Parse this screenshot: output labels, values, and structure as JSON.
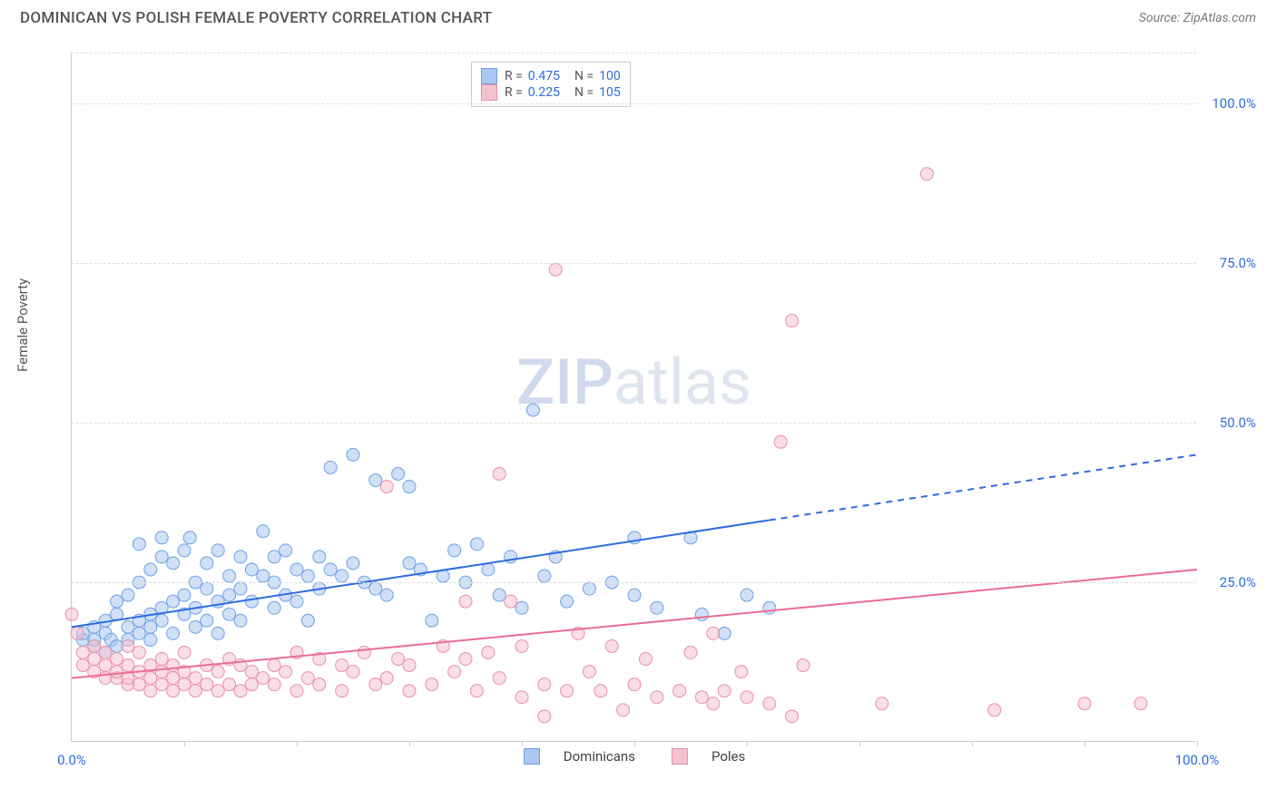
{
  "title": "DOMINICAN VS POLISH FEMALE POVERTY CORRELATION CHART",
  "source_label": "Source: ",
  "source_name": "ZipAtlas.com",
  "ylabel": "Female Poverty",
  "watermark_a": "ZIP",
  "watermark_b": "atlas",
  "chart": {
    "type": "scatter",
    "xlim": [
      0,
      100
    ],
    "ylim": [
      0,
      108
    ],
    "xtick_step": 10,
    "xtick_major": [
      0,
      100
    ],
    "ytick_values": [
      25,
      50,
      75,
      100
    ],
    "ytick_labels": [
      "25.0%",
      "50.0%",
      "75.0%",
      "100.0%"
    ],
    "xaxis_label_left": "0.0%",
    "xaxis_label_right": "100.0%",
    "grid_color": "#dddddd",
    "axis_color": "#cccccc",
    "background": "#ffffff",
    "marker_radius": 7,
    "marker_opacity": 0.55,
    "series": [
      {
        "name": "Dominicans",
        "color_fill": "#a9c7f0",
        "color_stroke": "#6fa0e6",
        "r": 0.475,
        "n": 100,
        "trend": {
          "color": "#2d6cdf",
          "width": 2.0,
          "y0": 18,
          "y1": 45,
          "solid_until_x": 62
        },
        "points": [
          [
            1,
            16
          ],
          [
            1,
            17
          ],
          [
            2,
            15
          ],
          [
            2,
            18
          ],
          [
            2,
            16
          ],
          [
            3,
            17
          ],
          [
            3,
            14
          ],
          [
            3,
            19
          ],
          [
            3.5,
            16
          ],
          [
            4,
            20
          ],
          [
            4,
            22
          ],
          [
            4,
            15
          ],
          [
            5,
            18
          ],
          [
            5,
            23
          ],
          [
            5,
            16
          ],
          [
            6,
            19
          ],
          [
            6,
            25
          ],
          [
            6,
            17
          ],
          [
            6,
            31
          ],
          [
            7,
            20
          ],
          [
            7,
            27
          ],
          [
            7,
            18
          ],
          [
            7,
            16
          ],
          [
            8,
            21
          ],
          [
            8,
            29
          ],
          [
            8,
            32
          ],
          [
            8,
            19
          ],
          [
            9,
            22
          ],
          [
            9,
            17
          ],
          [
            9,
            28
          ],
          [
            10,
            23
          ],
          [
            10,
            20
          ],
          [
            10,
            30
          ],
          [
            10.5,
            32
          ],
          [
            11,
            25
          ],
          [
            11,
            18
          ],
          [
            11,
            21
          ],
          [
            12,
            24
          ],
          [
            12,
            28
          ],
          [
            12,
            19
          ],
          [
            13,
            22
          ],
          [
            13,
            30
          ],
          [
            13,
            17
          ],
          [
            14,
            20
          ],
          [
            14,
            23
          ],
          [
            14,
            26
          ],
          [
            15,
            24
          ],
          [
            15,
            29
          ],
          [
            15,
            19
          ],
          [
            16,
            27
          ],
          [
            16,
            22
          ],
          [
            17,
            26
          ],
          [
            17,
            33
          ],
          [
            18,
            25
          ],
          [
            18,
            29
          ],
          [
            18,
            21
          ],
          [
            19,
            23
          ],
          [
            19,
            30
          ],
          [
            20,
            22
          ],
          [
            20,
            27
          ],
          [
            21,
            26
          ],
          [
            21,
            19
          ],
          [
            22,
            29
          ],
          [
            22,
            24
          ],
          [
            23,
            27
          ],
          [
            23,
            43
          ],
          [
            24,
            26
          ],
          [
            25,
            28
          ],
          [
            25,
            45
          ],
          [
            26,
            25
          ],
          [
            27,
            24
          ],
          [
            27,
            41
          ],
          [
            28,
            23
          ],
          [
            29,
            42
          ],
          [
            30,
            28
          ],
          [
            30,
            40
          ],
          [
            31,
            27
          ],
          [
            32,
            19
          ],
          [
            33,
            26
          ],
          [
            34,
            30
          ],
          [
            35,
            25
          ],
          [
            36,
            31
          ],
          [
            37,
            27
          ],
          [
            38,
            23
          ],
          [
            39,
            29
          ],
          [
            40,
            21
          ],
          [
            41,
            52
          ],
          [
            42,
            26
          ],
          [
            43,
            29
          ],
          [
            44,
            22
          ],
          [
            46,
            24
          ],
          [
            48,
            25
          ],
          [
            50,
            32
          ],
          [
            50,
            23
          ],
          [
            52,
            21
          ],
          [
            55,
            32
          ],
          [
            56,
            20
          ],
          [
            58,
            17
          ],
          [
            60,
            23
          ],
          [
            62,
            21
          ]
        ]
      },
      {
        "name": "Poles",
        "color_fill": "#f4c2cf",
        "color_stroke": "#e98fa9",
        "r": 0.225,
        "n": 105,
        "trend": {
          "color": "#e96d94",
          "width": 2.0,
          "y0": 10,
          "y1": 27,
          "solid_until_x": 100
        },
        "points": [
          [
            0,
            20
          ],
          [
            0.5,
            17
          ],
          [
            1,
            12
          ],
          [
            1,
            14
          ],
          [
            2,
            11
          ],
          [
            2,
            13
          ],
          [
            2,
            15
          ],
          [
            3,
            10
          ],
          [
            3,
            12
          ],
          [
            3,
            14
          ],
          [
            4,
            10
          ],
          [
            4,
            11
          ],
          [
            4,
            13
          ],
          [
            5,
            9
          ],
          [
            5,
            10
          ],
          [
            5,
            12
          ],
          [
            5,
            15
          ],
          [
            6,
            9
          ],
          [
            6,
            11
          ],
          [
            6,
            14
          ],
          [
            7,
            8
          ],
          [
            7,
            10
          ],
          [
            7,
            12
          ],
          [
            8,
            9
          ],
          [
            8,
            11
          ],
          [
            8,
            13
          ],
          [
            9,
            8
          ],
          [
            9,
            10
          ],
          [
            9,
            12
          ],
          [
            10,
            9
          ],
          [
            10,
            11
          ],
          [
            10,
            14
          ],
          [
            11,
            8
          ],
          [
            11,
            10
          ],
          [
            12,
            9
          ],
          [
            12,
            12
          ],
          [
            13,
            8
          ],
          [
            13,
            11
          ],
          [
            14,
            9
          ],
          [
            14,
            13
          ],
          [
            15,
            8
          ],
          [
            15,
            12
          ],
          [
            16,
            9
          ],
          [
            16,
            11
          ],
          [
            17,
            10
          ],
          [
            18,
            9
          ],
          [
            18,
            12
          ],
          [
            19,
            11
          ],
          [
            20,
            8
          ],
          [
            20,
            14
          ],
          [
            21,
            10
          ],
          [
            22,
            9
          ],
          [
            22,
            13
          ],
          [
            24,
            8
          ],
          [
            24,
            12
          ],
          [
            25,
            11
          ],
          [
            26,
            14
          ],
          [
            27,
            9
          ],
          [
            28,
            10
          ],
          [
            29,
            13
          ],
          [
            30,
            8
          ],
          [
            30,
            12
          ],
          [
            32,
            9
          ],
          [
            33,
            15
          ],
          [
            34,
            11
          ],
          [
            35,
            22
          ],
          [
            35,
            13
          ],
          [
            36,
            8
          ],
          [
            37,
            14
          ],
          [
            38,
            42
          ],
          [
            38,
            10
          ],
          [
            39,
            22
          ],
          [
            40,
            7
          ],
          [
            40,
            15
          ],
          [
            42,
            4
          ],
          [
            42,
            9
          ],
          [
            43,
            74
          ],
          [
            44,
            8
          ],
          [
            45,
            17
          ],
          [
            46,
            11
          ],
          [
            47,
            8
          ],
          [
            48,
            15
          ],
          [
            49,
            5
          ],
          [
            50,
            9
          ],
          [
            51,
            13
          ],
          [
            52,
            7
          ],
          [
            54,
            8
          ],
          [
            55,
            14
          ],
          [
            56,
            7
          ],
          [
            57,
            6
          ],
          [
            57,
            17
          ],
          [
            58,
            8
          ],
          [
            59.5,
            11
          ],
          [
            60,
            7
          ],
          [
            62,
            6
          ],
          [
            63,
            47
          ],
          [
            64,
            4
          ],
          [
            64,
            66
          ],
          [
            65,
            12
          ],
          [
            72,
            6
          ],
          [
            76,
            89
          ],
          [
            82,
            5
          ],
          [
            90,
            6
          ],
          [
            95,
            6
          ],
          [
            28,
            40
          ]
        ]
      }
    ]
  },
  "legend_bottom": {
    "items": [
      {
        "label": "Dominicans",
        "fill": "#a9c7f0",
        "stroke": "#6fa0e6"
      },
      {
        "label": "Poles",
        "fill": "#f4c2cf",
        "stroke": "#e98fa9"
      }
    ]
  },
  "legend_top": {
    "r_label": "R =",
    "n_label": "N ="
  }
}
